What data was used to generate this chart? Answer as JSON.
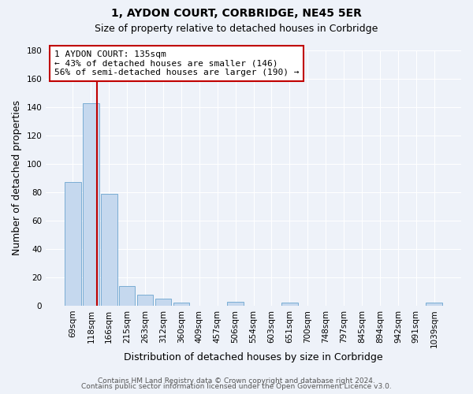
{
  "title": "1, AYDON COURT, CORBRIDGE, NE45 5ER",
  "subtitle": "Size of property relative to detached houses in Corbridge",
  "xlabel": "Distribution of detached houses by size in Corbridge",
  "ylabel": "Number of detached properties",
  "bar_labels": [
    "69sqm",
    "118sqm",
    "166sqm",
    "215sqm",
    "263sqm",
    "312sqm",
    "360sqm",
    "409sqm",
    "457sqm",
    "506sqm",
    "554sqm",
    "603sqm",
    "651sqm",
    "700sqm",
    "748sqm",
    "797sqm",
    "845sqm",
    "894sqm",
    "942sqm",
    "991sqm",
    "1039sqm"
  ],
  "bar_values": [
    87,
    143,
    79,
    14,
    8,
    5,
    2,
    0,
    0,
    3,
    0,
    0,
    2,
    0,
    0,
    0,
    0,
    0,
    0,
    0,
    2
  ],
  "bar_color": "#c5d8ee",
  "bar_edge_color": "#7aadd4",
  "ylim": [
    0,
    180
  ],
  "yticks": [
    0,
    20,
    40,
    60,
    80,
    100,
    120,
    140,
    160,
    180
  ],
  "property_line_color": "#c00000",
  "property_line_x": 1.35,
  "annotation_box_text": "1 AYDON COURT: 135sqm\n← 43% of detached houses are smaller (146)\n56% of semi-detached houses are larger (190) →",
  "annotation_box_color": "#c00000",
  "annotation_box_bg": "#ffffff",
  "footer_line1": "Contains HM Land Registry data © Crown copyright and database right 2024.",
  "footer_line2": "Contains public sector information licensed under the Open Government Licence v3.0.",
  "bg_color": "#eef2f9",
  "plot_bg_color": "#eef2f9",
  "grid_color": "#ffffff",
  "title_fontsize": 10,
  "subtitle_fontsize": 9,
  "axis_label_fontsize": 9,
  "tick_fontsize": 7.5,
  "annotation_fontsize": 8,
  "footer_fontsize": 6.5
}
